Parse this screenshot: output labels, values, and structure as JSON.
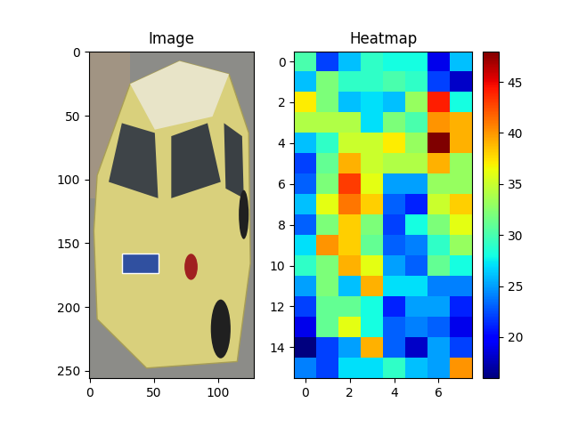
{
  "chart_data": [
    {
      "type": "image",
      "title": "Image",
      "xlim": [
        -0.5,
        127.5
      ],
      "ylim": [
        255.5,
        -0.5
      ],
      "xticks": [
        0,
        50,
        100
      ],
      "yticks": [
        0,
        50,
        100,
        150,
        200,
        250
      ]
    },
    {
      "type": "heatmap",
      "title": "Heatmap",
      "cells": [
        [
          30,
          22,
          26,
          29,
          28,
          28,
          19,
          26
        ],
        [
          26,
          32,
          29,
          29,
          30,
          29,
          22,
          18
        ],
        [
          37,
          32,
          26,
          27,
          26,
          33,
          44,
          28
        ],
        [
          34,
          34,
          34,
          27,
          32,
          30,
          40,
          39
        ],
        [
          26,
          29,
          35,
          35,
          37,
          33,
          48,
          39
        ],
        [
          22,
          31,
          39,
          35,
          34,
          34,
          39,
          33
        ],
        [
          23,
          32,
          43,
          36,
          25,
          25,
          33,
          33
        ],
        [
          26,
          36,
          41,
          38,
          23,
          21,
          35,
          38
        ],
        [
          23,
          32,
          38,
          32,
          22,
          28,
          32,
          36
        ],
        [
          27,
          40,
          38,
          31,
          23,
          24,
          29,
          33
        ],
        [
          29,
          32,
          39,
          36,
          25,
          23,
          31,
          28
        ],
        [
          25,
          32,
          26,
          39,
          27,
          27,
          24,
          24
        ],
        [
          22,
          31,
          31,
          28,
          21,
          25,
          25,
          21
        ],
        [
          19,
          31,
          36,
          28,
          23,
          24,
          23,
          19
        ],
        [
          16,
          22,
          25,
          39,
          23,
          18,
          25,
          22
        ],
        [
          24,
          22,
          27,
          27,
          29,
          26,
          25,
          40
        ]
      ],
      "xlim": [
        -0.5,
        7.5
      ],
      "ylim": [
        15.5,
        -0.5
      ],
      "xticks": [
        0,
        2,
        4,
        6
      ],
      "yticks": [
        0,
        2,
        4,
        6,
        8,
        10,
        12,
        14
      ],
      "colorbar_range": [
        16,
        48
      ],
      "colorbar_ticks": [
        20,
        25,
        30,
        35,
        40,
        45
      ]
    }
  ]
}
